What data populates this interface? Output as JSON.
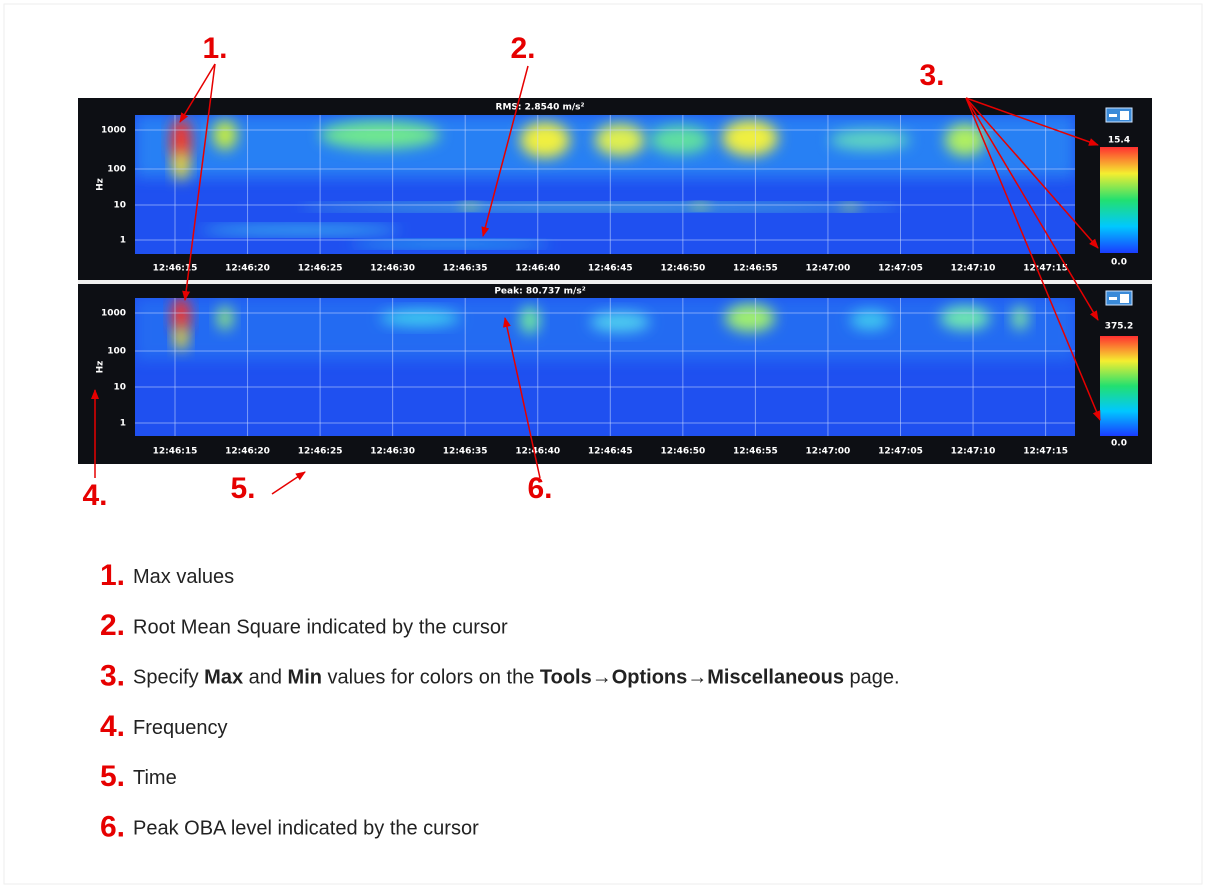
{
  "callouts": [
    "1.",
    "2.",
    "3.",
    "4.",
    "5.",
    "6."
  ],
  "panels": [
    {
      "title": "RMS: 2.8540 m/s²",
      "y_label": "Hz",
      "y_ticks": [
        "1000",
        "100",
        "10",
        "1"
      ],
      "x_ticks": [
        "12:46:15",
        "12:46:20",
        "12:46:25",
        "12:46:30",
        "12:46:35",
        "12:46:40",
        "12:46:45",
        "12:46:50",
        "12:46:55",
        "12:47:00",
        "12:47:05",
        "12:47:10",
        "12:47:15"
      ],
      "scale_max": "15.4",
      "scale_min": "0.0"
    },
    {
      "title": "Peak: 80.737 m/s²",
      "y_label": "Hz",
      "y_ticks": [
        "1000",
        "100",
        "10",
        "1"
      ],
      "x_ticks": [
        "12:46:15",
        "12:46:20",
        "12:46:25",
        "12:46:30",
        "12:46:35",
        "12:46:40",
        "12:46:45",
        "12:46:50",
        "12:46:55",
        "12:47:00",
        "12:47:05",
        "12:47:10",
        "12:47:15"
      ],
      "scale_max": "375.2",
      "scale_min": "0.0"
    }
  ],
  "legend": [
    {
      "number": "1.",
      "parts": [
        {
          "text": "Max values"
        }
      ]
    },
    {
      "number": "2.",
      "parts": [
        {
          "text": "Root Mean Square indicated by the cursor"
        }
      ]
    },
    {
      "number": "3.",
      "parts": [
        {
          "text": "Specify "
        },
        {
          "text": "Max",
          "bold": true
        },
        {
          "text": " and "
        },
        {
          "text": "Min",
          "bold": true
        },
        {
          "text": " values for colors on the "
        },
        {
          "text": "Tools→Options→Miscellaneous",
          "bold": true
        },
        {
          "text": " page."
        }
      ]
    },
    {
      "number": "4.",
      "parts": [
        {
          "text": "Frequency"
        }
      ]
    },
    {
      "number": "5.",
      "parts": [
        {
          "text": "Time"
        }
      ]
    },
    {
      "number": "6.",
      "parts": [
        {
          "text": "Peak OBA level indicated by the cursor"
        }
      ]
    }
  ]
}
